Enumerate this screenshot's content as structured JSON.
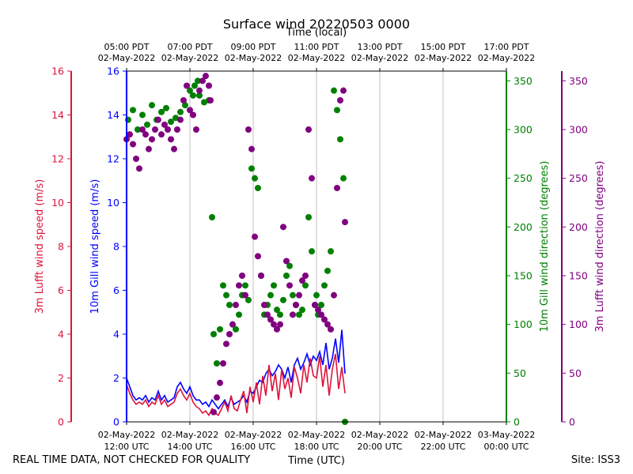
{
  "chart_data": {
    "type": "scatter",
    "title": "Surface wind 20220503 0000",
    "top_xlabel": "Time (local)",
    "xlabel": "Time (UTC)",
    "footer_left": "REAL TIME DATA, NOT CHECKED FOR QUALITY",
    "footer_right": "Site: ISS3",
    "x_range_hours_utc": [
      12,
      24
    ],
    "bottom_ticks": [
      {
        "hour": 12,
        "l1": "02-May-2022",
        "l2": "12:00 UTC"
      },
      {
        "hour": 14,
        "l1": "02-May-2022",
        "l2": "14:00 UTC"
      },
      {
        "hour": 16,
        "l1": "02-May-2022",
        "l2": "16:00 UTC"
      },
      {
        "hour": 18,
        "l1": "02-May-2022",
        "l2": "18:00 UTC"
      },
      {
        "hour": 20,
        "l1": "02-May-2022",
        "l2": "20:00 UTC"
      },
      {
        "hour": 22,
        "l1": "02-May-2022",
        "l2": "22:00 UTC"
      },
      {
        "hour": 24,
        "l1": "03-May-2022",
        "l2": "00:00 UTC"
      }
    ],
    "top_ticks": [
      {
        "hour": 12,
        "l1": "05:00 PDT",
        "l2": "02-May-2022"
      },
      {
        "hour": 14,
        "l1": "07:00 PDT",
        "l2": "02-May-2022"
      },
      {
        "hour": 16,
        "l1": "09:00 PDT",
        "l2": "02-May-2022"
      },
      {
        "hour": 18,
        "l1": "11:00 PDT",
        "l2": "02-May-2022"
      },
      {
        "hour": 20,
        "l1": "13:00 PDT",
        "l2": "02-May-2022"
      },
      {
        "hour": 22,
        "l1": "15:00 PDT",
        "l2": "02-May-2022"
      },
      {
        "hour": 24,
        "l1": "17:00 PDT",
        "l2": "02-May-2022"
      }
    ],
    "speed_axes": {
      "ylim": [
        0,
        16
      ],
      "ticks": [
        0,
        2,
        4,
        6,
        8,
        10,
        12,
        14,
        16
      ],
      "lufft_label": "3m Lufft wind speed (m/s)",
      "gill_label": "10m Gill wind speed (m/s)"
    },
    "direction_axes": {
      "ylim": [
        0,
        360
      ],
      "ticks": [
        0,
        50,
        100,
        150,
        200,
        250,
        300,
        350
      ],
      "gill_label": "10m Gill wind direction (degrees)",
      "lufft_label": "3m Lufft wind direction (degrees)"
    },
    "colors": {
      "lufft_speed": "#dc143c",
      "gill_speed": "#0000ff",
      "gill_dir": "#008000",
      "lufft_dir": "#800080",
      "grid": "#b0b0b0",
      "axis": "#000000"
    },
    "series": [
      {
        "name": "10m Gill wind speed (m/s)",
        "axis": "speed",
        "style": "line",
        "color": "#0000ff",
        "x": [
          12.0,
          12.1,
          12.2,
          12.3,
          12.4,
          12.5,
          12.6,
          12.7,
          12.8,
          12.9,
          13.0,
          13.1,
          13.2,
          13.3,
          13.4,
          13.5,
          13.6,
          13.7,
          13.8,
          13.9,
          14.0,
          14.1,
          14.2,
          14.3,
          14.4,
          14.5,
          14.6,
          14.7,
          14.8,
          14.9,
          15.0,
          15.1,
          15.2,
          15.3,
          15.4,
          15.5,
          15.6,
          15.7,
          15.8,
          15.9,
          16.0,
          16.1,
          16.2,
          16.3,
          16.4,
          16.5,
          16.6,
          16.7,
          16.8,
          16.9,
          17.0,
          17.1,
          17.2,
          17.3,
          17.4,
          17.5,
          17.6,
          17.7,
          17.8,
          17.9,
          18.0,
          18.1,
          18.2,
          18.3,
          18.4,
          18.5,
          18.6,
          18.7,
          18.8,
          18.9
        ],
        "values": [
          2.0,
          1.6,
          1.2,
          1.0,
          1.1,
          1.0,
          1.2,
          0.9,
          1.1,
          1.0,
          1.4,
          1.0,
          1.2,
          0.9,
          1.0,
          1.1,
          1.6,
          1.8,
          1.5,
          1.3,
          1.6,
          1.2,
          1.0,
          1.0,
          0.8,
          0.9,
          0.7,
          1.0,
          0.8,
          0.6,
          0.8,
          1.0,
          0.7,
          1.1,
          0.8,
          0.9,
          1.0,
          1.2,
          0.9,
          1.4,
          1.3,
          1.6,
          1.9,
          1.8,
          2.2,
          2.4,
          2.1,
          2.3,
          2.6,
          2.4,
          2.0,
          2.5,
          1.8,
          2.6,
          2.9,
          2.4,
          2.7,
          3.1,
          2.6,
          3.0,
          2.8,
          3.2,
          2.6,
          3.6,
          2.4,
          2.9,
          3.8,
          2.7,
          4.2,
          2.2
        ]
      },
      {
        "name": "3m Lufft wind speed (m/s)",
        "axis": "speed",
        "style": "line",
        "color": "#dc143c",
        "x": [
          12.0,
          12.1,
          12.2,
          12.3,
          12.4,
          12.5,
          12.6,
          12.7,
          12.8,
          12.9,
          13.0,
          13.1,
          13.2,
          13.3,
          13.4,
          13.5,
          13.6,
          13.7,
          13.8,
          13.9,
          14.0,
          14.1,
          14.2,
          14.3,
          14.4,
          14.5,
          14.6,
          14.7,
          14.8,
          14.9,
          15.0,
          15.1,
          15.2,
          15.3,
          15.4,
          15.5,
          15.6,
          15.7,
          15.8,
          15.9,
          16.0,
          16.1,
          16.2,
          16.3,
          16.4,
          16.5,
          16.6,
          16.7,
          16.8,
          16.9,
          17.0,
          17.1,
          17.2,
          17.3,
          17.4,
          17.5,
          17.6,
          17.7,
          17.8,
          17.9,
          18.0,
          18.1,
          18.2,
          18.3,
          18.4,
          18.5,
          18.6,
          18.7,
          18.8,
          18.9
        ],
        "values": [
          1.7,
          1.3,
          1.0,
          0.8,
          0.9,
          0.8,
          1.0,
          0.7,
          0.9,
          0.8,
          1.2,
          0.8,
          1.0,
          0.7,
          0.8,
          0.9,
          1.3,
          1.5,
          1.2,
          1.0,
          1.3,
          0.9,
          0.7,
          0.6,
          0.4,
          0.5,
          0.3,
          0.6,
          0.4,
          0.3,
          0.6,
          0.9,
          0.5,
          1.2,
          0.6,
          0.5,
          1.0,
          1.4,
          0.4,
          1.6,
          0.9,
          1.8,
          0.8,
          2.1,
          1.2,
          2.6,
          1.4,
          2.2,
          1.0,
          2.4,
          1.5,
          2.0,
          1.1,
          2.5,
          2.0,
          1.3,
          2.6,
          1.8,
          2.9,
          2.1,
          2.0,
          3.0,
          1.6,
          2.6,
          1.2,
          2.4,
          3.1,
          1.5,
          2.5,
          1.3
        ]
      },
      {
        "name": "10m Gill wind direction (degrees)",
        "axis": "direction",
        "style": "points",
        "color": "#008000",
        "x": [
          12.05,
          12.2,
          12.35,
          12.5,
          12.65,
          12.8,
          12.95,
          13.1,
          13.25,
          13.4,
          13.55,
          13.7,
          13.85,
          14.0,
          14.15,
          14.3,
          14.45,
          14.6,
          14.1,
          14.25,
          14.7,
          14.75,
          14.85,
          14.95,
          15.05,
          15.15,
          15.25,
          15.35,
          15.45,
          15.55,
          15.65,
          15.75,
          15.85,
          15.95,
          16.05,
          16.15,
          16.25,
          16.35,
          16.45,
          16.55,
          16.65,
          16.75,
          16.85,
          16.95,
          17.05,
          17.15,
          17.25,
          17.35,
          17.45,
          17.55,
          17.65,
          17.75,
          17.85,
          17.95,
          18.0,
          18.05,
          18.15,
          18.25,
          18.35,
          18.45,
          18.55,
          18.65,
          18.75,
          18.85,
          18.9
        ],
        "values": [
          310,
          320,
          300,
          315,
          305,
          325,
          310,
          318,
          322,
          308,
          312,
          318,
          325,
          340,
          345,
          335,
          328,
          330,
          335,
          350,
          210,
          90,
          60,
          95,
          140,
          130,
          120,
          100,
          95,
          110,
          130,
          140,
          125,
          260,
          250,
          240,
          150,
          110,
          120,
          130,
          140,
          115,
          110,
          125,
          150,
          160,
          130,
          120,
          110,
          115,
          140,
          210,
          175,
          120,
          130,
          110,
          120,
          140,
          155,
          175,
          340,
          320,
          290,
          250,
          0
        ]
      },
      {
        "name": "3m Lufft wind direction (degrees)",
        "axis": "direction",
        "style": "points",
        "color": "#800080",
        "x": [
          12.0,
          12.1,
          12.2,
          12.3,
          12.4,
          12.5,
          12.6,
          12.7,
          12.8,
          12.9,
          13.0,
          13.1,
          13.2,
          13.3,
          13.4,
          13.5,
          13.6,
          13.7,
          13.8,
          13.9,
          14.0,
          14.1,
          14.2,
          14.3,
          14.4,
          14.5,
          14.6,
          14.65,
          14.75,
          14.85,
          14.95,
          15.05,
          15.15,
          15.25,
          15.35,
          15.45,
          15.55,
          15.65,
          15.75,
          15.85,
          15.95,
          16.05,
          16.15,
          16.25,
          16.35,
          16.45,
          16.55,
          16.65,
          16.75,
          16.85,
          16.95,
          17.05,
          17.15,
          17.25,
          17.35,
          17.45,
          17.55,
          17.65,
          17.75,
          17.85,
          17.95,
          18.05,
          18.15,
          18.25,
          18.35,
          18.45,
          18.55,
          18.65,
          18.75,
          18.85,
          18.9
        ],
        "values": [
          290,
          295,
          285,
          270,
          260,
          300,
          295,
          280,
          290,
          300,
          310,
          295,
          305,
          300,
          290,
          280,
          300,
          310,
          330,
          345,
          320,
          315,
          300,
          340,
          350,
          355,
          345,
          330,
          10,
          25,
          40,
          60,
          80,
          90,
          100,
          120,
          140,
          150,
          130,
          300,
          280,
          190,
          170,
          150,
          120,
          110,
          105,
          100,
          95,
          100,
          200,
          165,
          140,
          110,
          120,
          130,
          145,
          150,
          300,
          250,
          120,
          115,
          110,
          105,
          100,
          95,
          130,
          240,
          330,
          340,
          205
        ]
      }
    ]
  }
}
